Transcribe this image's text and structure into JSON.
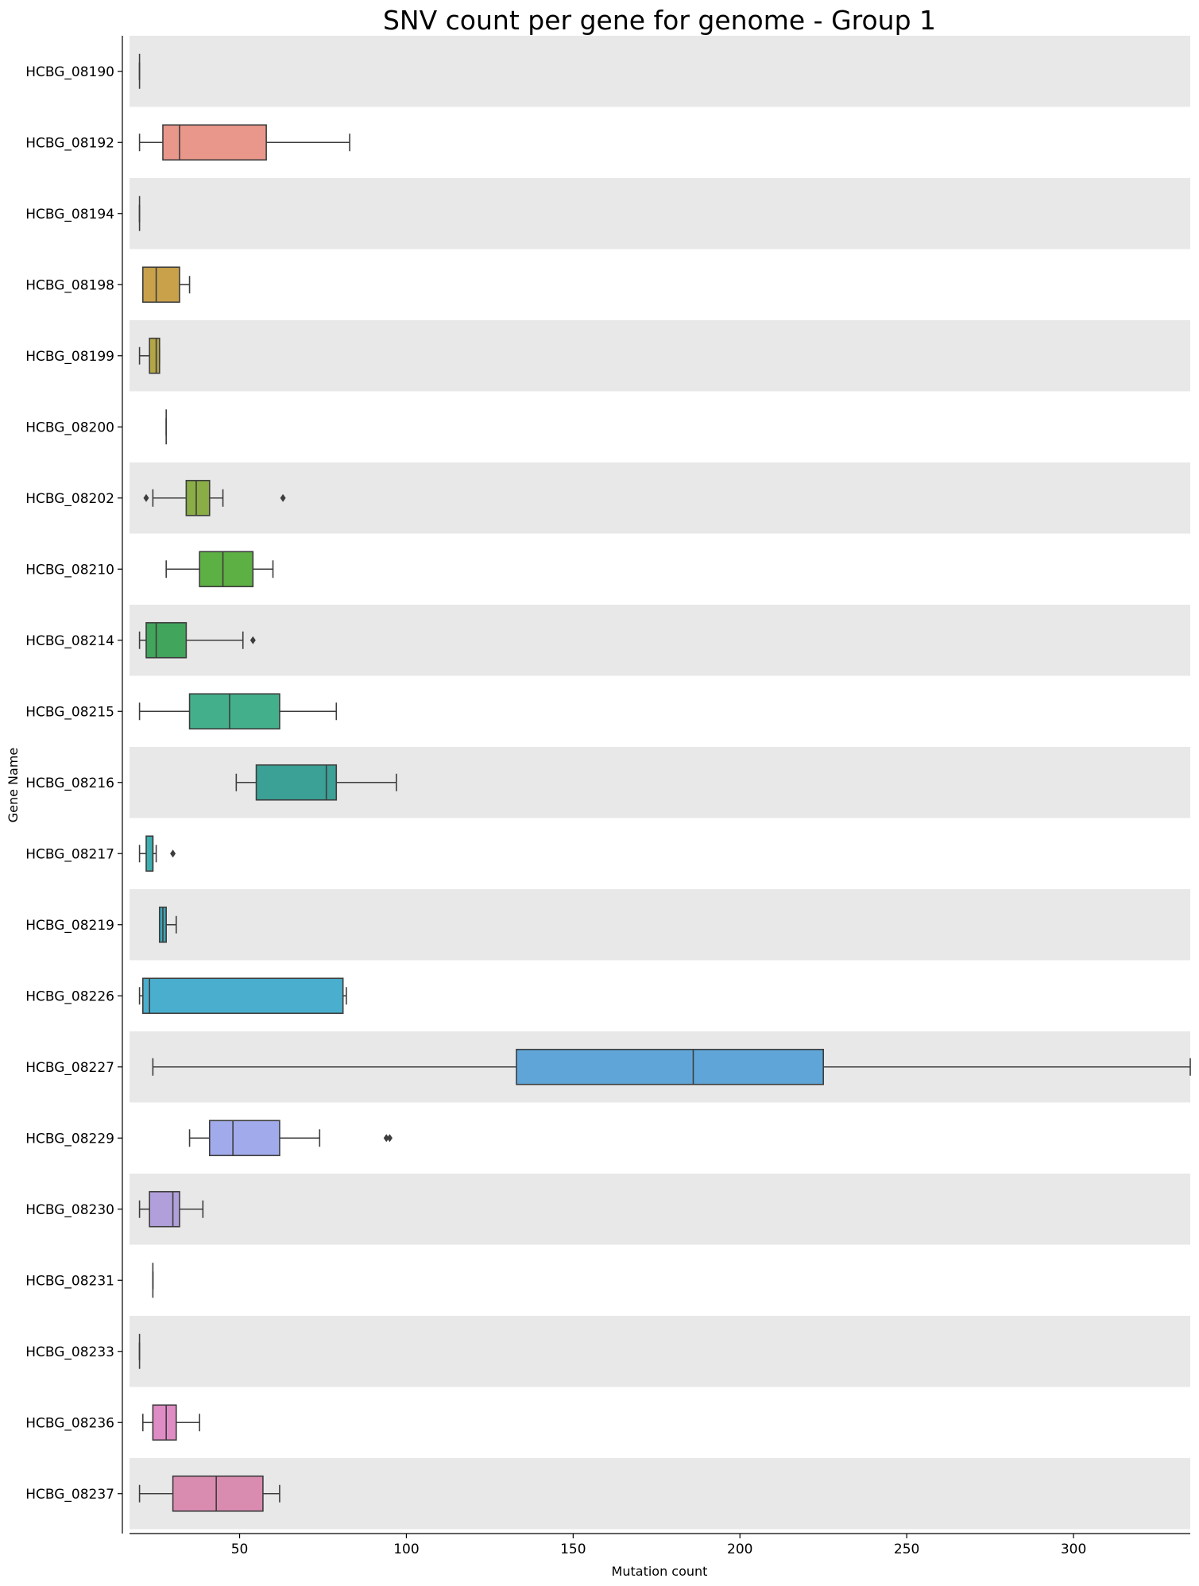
{
  "chart_data": {
    "type": "box",
    "orientation": "horizontal",
    "title": "SNV count per gene for genome - Group 1",
    "xlabel": "Mutation count",
    "ylabel": "Gene Name",
    "xlim": [
      17,
      335
    ],
    "xticks": [
      50,
      100,
      150,
      200,
      250,
      300
    ],
    "grid": false,
    "row_band_color": "#e8e8e8",
    "outlier_color": "#3d3d3d",
    "line_color": "#3d3d3d",
    "boxes": [
      {
        "gene": "HCBG_08190",
        "whisker_low": 20,
        "q1": 20,
        "median": 20,
        "q3": 20,
        "whisker_high": 20,
        "outliers": [],
        "color": "#ea9684"
      },
      {
        "gene": "HCBG_08192",
        "whisker_low": 20,
        "q1": 27,
        "median": 32,
        "q3": 58,
        "whisker_high": 83,
        "outliers": [],
        "color": "#e9978a"
      },
      {
        "gene": "HCBG_08194",
        "whisker_low": 20,
        "q1": 20,
        "median": 20,
        "q3": 20,
        "whisker_high": 20,
        "outliers": [],
        "color": "#d89e5a"
      },
      {
        "gene": "HCBG_08198",
        "whisker_low": 21,
        "q1": 21,
        "median": 25,
        "q3": 32,
        "whisker_high": 35,
        "outliers": [],
        "color": "#c9a14b"
      },
      {
        "gene": "HCBG_08199",
        "whisker_low": 20,
        "q1": 23,
        "median": 25,
        "q3": 26,
        "whisker_high": 26,
        "outliers": [],
        "color": "#b3a646"
      },
      {
        "gene": "HCBG_08200",
        "whisker_low": 28,
        "q1": 28,
        "median": 28,
        "q3": 28,
        "whisker_high": 28,
        "outliers": [],
        "color": "#a0ab44"
      },
      {
        "gene": "HCBG_08202",
        "whisker_low": 24,
        "q1": 34,
        "median": 37,
        "q3": 41,
        "whisker_high": 45,
        "outliers": [
          22,
          63
        ],
        "color": "#8aad46"
      },
      {
        "gene": "HCBG_08210",
        "whisker_low": 28,
        "q1": 38,
        "median": 45,
        "q3": 54,
        "whisker_high": 60,
        "outliers": [],
        "color": "#5db043"
      },
      {
        "gene": "HCBG_08214",
        "whisker_low": 20,
        "q1": 22,
        "median": 25,
        "q3": 34,
        "whisker_high": 51,
        "outliers": [
          54
        ],
        "color": "#41a55b"
      },
      {
        "gene": "HCBG_08215",
        "whisker_low": 20,
        "q1": 35,
        "median": 47,
        "q3": 62,
        "whisker_high": 79,
        "outliers": [],
        "color": "#43b08b"
      },
      {
        "gene": "HCBG_08216",
        "whisker_low": 49,
        "q1": 55,
        "median": 76,
        "q3": 79,
        "whisker_high": 97,
        "outliers": [],
        "color": "#3ba095"
      },
      {
        "gene": "HCBG_08217",
        "whisker_low": 20,
        "q1": 22,
        "median": 24,
        "q3": 24,
        "whisker_high": 25,
        "outliers": [
          30
        ],
        "color": "#3cb0b0"
      },
      {
        "gene": "HCBG_08219",
        "whisker_low": 26,
        "q1": 26,
        "median": 27,
        "q3": 28,
        "whisker_high": 31,
        "outliers": [],
        "color": "#3ba6b6"
      },
      {
        "gene": "HCBG_08226",
        "whisker_low": 20,
        "q1": 21,
        "median": 23,
        "q3": 81,
        "whisker_high": 82,
        "outliers": [],
        "color": "#4aafce"
      },
      {
        "gene": "HCBG_08227",
        "whisker_low": 24,
        "q1": 133,
        "median": 186,
        "q3": 225,
        "whisker_high": 335,
        "outliers": [],
        "color": "#5fa5d8"
      },
      {
        "gene": "HCBG_08229",
        "whisker_low": 35,
        "q1": 41,
        "median": 48,
        "q3": 62,
        "whisker_high": 74,
        "outliers": [
          94,
          95
        ],
        "color": "#a1aaea"
      },
      {
        "gene": "HCBG_08230",
        "whisker_low": 20,
        "q1": 23,
        "median": 30,
        "q3": 32,
        "whisker_high": 39,
        "outliers": [],
        "color": "#b19fdb"
      },
      {
        "gene": "HCBG_08231",
        "whisker_low": 24,
        "q1": 24,
        "median": 24,
        "q3": 24,
        "whisker_high": 24,
        "outliers": [],
        "color": "#c595dc"
      },
      {
        "gene": "HCBG_08233",
        "whisker_low": 20,
        "q1": 20,
        "median": 20,
        "q3": 20,
        "whisker_high": 20,
        "outliers": [],
        "color": "#d98bc9"
      },
      {
        "gene": "HCBG_08236",
        "whisker_low": 21,
        "q1": 24,
        "median": 28,
        "q3": 31,
        "whisker_high": 38,
        "outliers": [],
        "color": "#e08cc4"
      },
      {
        "gene": "HCBG_08237",
        "whisker_low": 20,
        "q1": 30,
        "median": 43,
        "q3": 57,
        "whisker_high": 62,
        "outliers": [],
        "color": "#d98cb0"
      }
    ]
  }
}
